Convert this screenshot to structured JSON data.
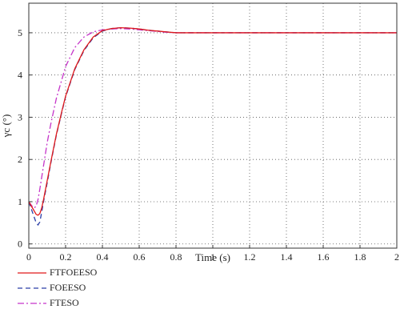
{
  "chart_data": {
    "type": "line",
    "xlabel": "Time (s)",
    "ylabel": "γc (°)",
    "xlim": [
      0,
      2
    ],
    "ylim": [
      -0.1,
      5.7
    ],
    "xticks": [
      0,
      0.2,
      0.4,
      0.6,
      0.8,
      1,
      1.2,
      1.4,
      1.6,
      1.8,
      2
    ],
    "yticks": [
      0,
      1,
      2,
      3,
      4,
      5
    ],
    "grid": true,
    "legend_position": "below-left",
    "series": [
      {
        "name": "FTFOEESO",
        "color": "#e0191b",
        "dash": "solid",
        "x": [
          0,
          0.02,
          0.04,
          0.05,
          0.06,
          0.07,
          0.08,
          0.1,
          0.12,
          0.15,
          0.18,
          0.2,
          0.25,
          0.3,
          0.35,
          0.4,
          0.45,
          0.5,
          0.55,
          0.6,
          0.65,
          0.7,
          0.75,
          0.8,
          0.85,
          1.0,
          1.2,
          1.4,
          1.6,
          1.8,
          2.0
        ],
        "y": [
          1.0,
          0.85,
          0.7,
          0.68,
          0.72,
          0.85,
          1.05,
          1.5,
          1.95,
          2.6,
          3.15,
          3.5,
          4.15,
          4.6,
          4.9,
          5.05,
          5.1,
          5.12,
          5.11,
          5.09,
          5.06,
          5.04,
          5.02,
          5.0,
          5.0,
          5.0,
          5.0,
          5.0,
          5.0,
          5.0,
          5.0
        ]
      },
      {
        "name": "FOEESO",
        "color": "#2b3fa8",
        "dash": "6,4",
        "x": [
          0,
          0.02,
          0.04,
          0.05,
          0.06,
          0.07,
          0.08,
          0.1,
          0.12,
          0.15,
          0.18,
          0.2,
          0.25,
          0.3,
          0.35,
          0.4,
          0.45,
          0.5,
          0.55,
          0.6,
          0.65,
          0.7,
          0.75,
          0.8,
          0.85,
          1.0,
          1.2,
          1.4,
          1.6,
          1.8,
          2.0
        ],
        "y": [
          1.0,
          0.75,
          0.5,
          0.45,
          0.52,
          0.75,
          1.0,
          1.45,
          1.92,
          2.58,
          3.13,
          3.48,
          4.13,
          4.58,
          4.88,
          5.04,
          5.1,
          5.12,
          5.11,
          5.09,
          5.06,
          5.04,
          5.02,
          5.0,
          5.0,
          5.0,
          5.0,
          5.0,
          5.0,
          5.0,
          5.0
        ]
      },
      {
        "name": "FTESO",
        "color": "#c534c9",
        "dash": "8,3,2,3",
        "x": [
          0,
          0.02,
          0.03,
          0.04,
          0.05,
          0.06,
          0.08,
          0.1,
          0.12,
          0.15,
          0.2,
          0.25,
          0.3,
          0.35,
          0.4,
          0.45,
          0.5,
          0.55,
          0.6,
          0.65,
          0.7,
          0.75,
          0.8,
          0.85,
          1.0,
          1.2,
          1.4,
          1.6,
          1.8,
          2.0
        ],
        "y": [
          1.0,
          0.88,
          0.85,
          0.9,
          1.05,
          1.3,
          1.85,
          2.4,
          2.85,
          3.45,
          4.2,
          4.65,
          4.9,
          5.02,
          5.07,
          5.09,
          5.1,
          5.09,
          5.07,
          5.05,
          5.03,
          5.01,
          5.0,
          5.0,
          5.0,
          5.0,
          5.0,
          5.0,
          5.0,
          5.0
        ]
      }
    ]
  }
}
